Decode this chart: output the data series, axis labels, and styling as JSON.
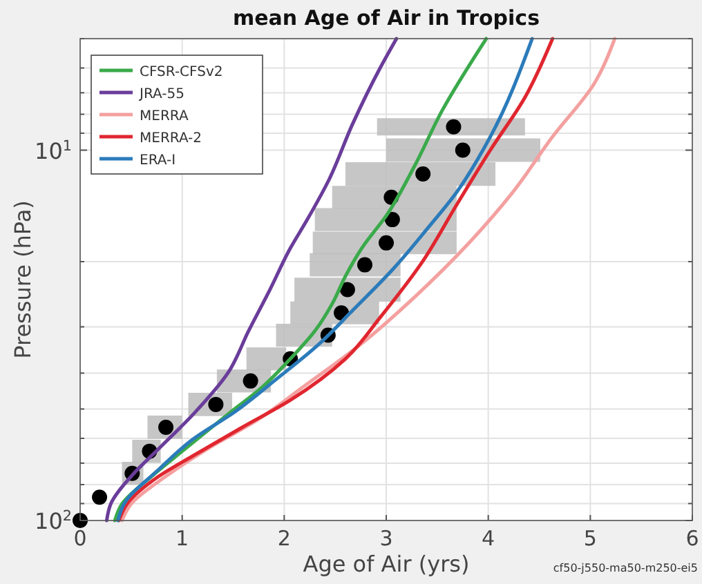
{
  "chart_data": {
    "type": "line",
    "title": "mean Age of Air in Tropics",
    "xlabel": "Age of Air (yrs)",
    "ylabel": "Pressure (hPa)",
    "annotations": [
      "cf50-j550-ma50-m250-ei5"
    ],
    "log": "y",
    "grid": true,
    "legend": "top left",
    "line_style": "solid",
    "xlim": [
      0,
      6
    ],
    "xticks": [
      0,
      1,
      2,
      3,
      4,
      5,
      6
    ],
    "ylim": [
      100,
      5
    ],
    "yticks": [
      {
        "value": 100,
        "label": "10$^{2}$"
      },
      {
        "value": 90,
        "label": null
      },
      {
        "value": 80,
        "label": null
      },
      {
        "value": 70,
        "label": null
      },
      {
        "value": 60,
        "label": null
      },
      {
        "value": 50,
        "label": null
      },
      {
        "value": 40,
        "label": null
      },
      {
        "value": 30,
        "label": null
      },
      {
        "value": 20,
        "label": null
      },
      {
        "value": 10,
        "label": "10$^{1}$"
      },
      {
        "value": 9,
        "label": null
      },
      {
        "value": 8,
        "label": null
      },
      {
        "value": 7,
        "label": null
      },
      {
        "value": 6,
        "label": null
      },
      {
        "value": 5,
        "label": null
      }
    ],
    "series": [
      {
        "name": "CFSR-CFSv2",
        "color": "#3aaa4a",
        "x": [
          0.34,
          0.41,
          0.7,
          0.98,
          1.45,
          1.79,
          2.06,
          2.3,
          2.47,
          2.6,
          2.76,
          3.01,
          3.28,
          3.55,
          3.98
        ],
        "values": [
          100,
          90.2,
          76,
          65.7,
          51.6,
          43.5,
          36.6,
          30.8,
          26,
          21.9,
          18.4,
          14.9,
          11,
          7.8,
          5
        ]
      },
      {
        "name": "JRA-55",
        "color": "#6a3d9a",
        "x": [
          0.26,
          0.3,
          0.5,
          0.77,
          1.11,
          1.45,
          1.65,
          1.86,
          2.06,
          2.22,
          2.44,
          2.67,
          2.94,
          3.1
        ],
        "values": [
          100,
          90.2,
          76,
          64,
          51.6,
          39.9,
          30.8,
          23.8,
          18.4,
          15.5,
          12,
          8.5,
          6,
          5
        ]
      },
      {
        "name": "MERRA",
        "color": "#f4a0a0",
        "x": [
          0.41,
          0.5,
          0.84,
          1.25,
          1.72,
          2.19,
          2.74,
          3.28,
          3.82,
          4.23,
          4.63,
          5.04,
          5.24
        ],
        "values": [
          100,
          90.2,
          76,
          64,
          53.9,
          43.5,
          33.6,
          24.9,
          17.7,
          13.1,
          9.2,
          6.6,
          5
        ]
      },
      {
        "name": "MERRA-2",
        "color": "#e0262f",
        "x": [
          0.38,
          0.46,
          0.77,
          1.11,
          1.58,
          2.06,
          2.6,
          2.94,
          3.35,
          3.68,
          4.02,
          4.36,
          4.63
        ],
        "values": [
          100,
          90.2,
          76,
          66.8,
          56.2,
          47.3,
          36.6,
          28.3,
          20.1,
          14.2,
          10,
          7.2,
          5
        ]
      },
      {
        "name": "ERA-I",
        "color": "#2b7bba",
        "x": [
          0.37,
          0.43,
          0.77,
          1.11,
          1.52,
          1.92,
          2.33,
          2.67,
          3.07,
          3.41,
          3.68,
          4.02,
          4.43
        ],
        "values": [
          100,
          90.2,
          72.8,
          60.2,
          50.8,
          41.6,
          33.6,
          27.1,
          20.9,
          16.2,
          13.1,
          9.2,
          5
        ]
      },
      {
        "type": "scatter",
        "marker": "circle",
        "color": "#000000",
        "x": [
          0,
          0.19,
          0.51,
          0.68,
          0.84,
          1.33,
          1.67,
          2.06,
          2.43,
          2.56,
          2.62,
          2.79,
          3.0,
          3.06,
          3.05,
          3.36,
          3.75,
          3.66
        ],
        "values": [
          100,
          86.5,
          74.6,
          65,
          56,
          48.6,
          42,
          36.6,
          31.6,
          27.5,
          23.8,
          20.4,
          17.8,
          15.4,
          13.4,
          11.6,
          10,
          8.65
        ],
        "xerrors": [
          null,
          null,
          [
            0.41,
            0.62
          ],
          [
            0.51,
            0.79
          ],
          [
            0.66,
            1.0
          ],
          [
            1.06,
            1.49
          ],
          [
            1.34,
            1.87
          ],
          [
            1.63,
            2.02
          ],
          [
            1.92,
            2.47
          ],
          [
            2.06,
            2.93
          ],
          [
            2.1,
            3.14
          ],
          [
            2.25,
            3.14
          ],
          [
            2.28,
            3.69
          ],
          [
            2.3,
            3.69
          ],
          [
            2.47,
            3.69
          ],
          [
            2.6,
            4.07
          ],
          [
            3.0,
            4.51
          ],
          [
            2.91,
            4.36
          ]
        ]
      }
    ]
  }
}
